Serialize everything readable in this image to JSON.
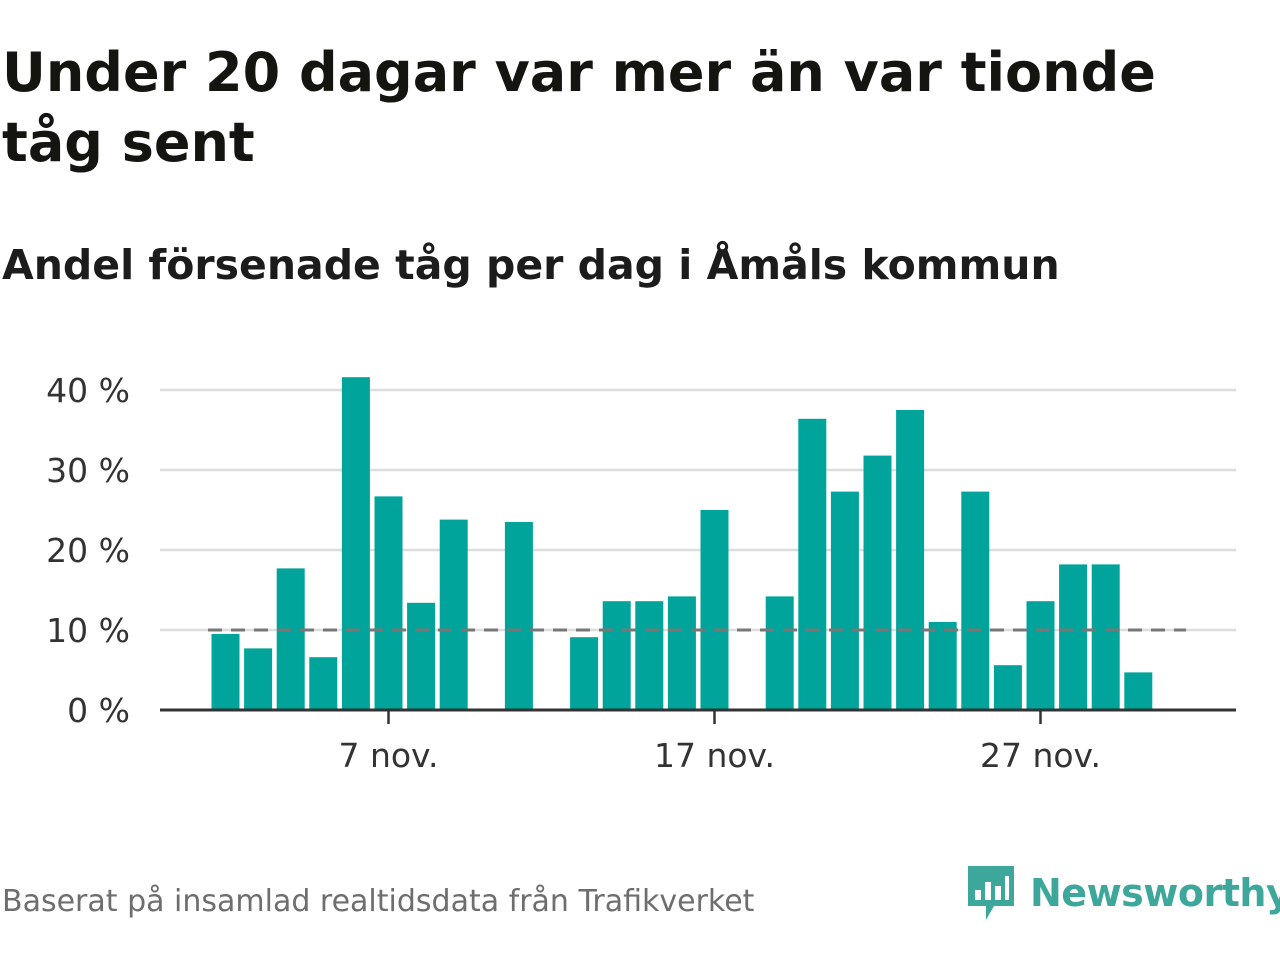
{
  "header": {
    "title": "Under 20 dagar var mer än var tionde tåg sent",
    "subtitle": "Andel försenade tåg per dag i Åmåls kommun"
  },
  "footer": {
    "source": "Baserat på insamlad realtidsdata från Trafikverket",
    "brand": "Newsworthy"
  },
  "colors": {
    "bar": "#00a49a",
    "reference_line": "#777777",
    "grid": "#dddddd",
    "axis": "#333333",
    "brand": "#3ea79b"
  },
  "icons": {
    "brand_logo": "newsworthy-logo-icon"
  },
  "chart_data": {
    "type": "bar",
    "title": "Andel försenade tåg per dag i Åmåls kommun",
    "xlabel": "",
    "ylabel": "",
    "x_tick_labels": [
      {
        "date": "2023-11-07",
        "label": "7 nov."
      },
      {
        "date": "2023-11-17",
        "label": "17 nov."
      },
      {
        "date": "2023-11-27",
        "label": "27 nov."
      }
    ],
    "y_ticks": [
      0,
      10,
      20,
      30,
      40
    ],
    "y_tick_labels": [
      "0 %",
      "10 %",
      "20 %",
      "30 %",
      "40 %"
    ],
    "ylim": [
      0,
      41.5
    ],
    "grid": true,
    "reference_line": 10,
    "categories": [
      "2023-11-02",
      "2023-11-03",
      "2023-11-04",
      "2023-11-05",
      "2023-11-06",
      "2023-11-07",
      "2023-11-08",
      "2023-11-09",
      "2023-11-10",
      "2023-11-11",
      "2023-11-12",
      "2023-11-13",
      "2023-11-14",
      "2023-11-15",
      "2023-11-16",
      "2023-11-17",
      "2023-11-18",
      "2023-11-19",
      "2023-11-20",
      "2023-11-21",
      "2023-11-22",
      "2023-11-23",
      "2023-11-24",
      "2023-11-25",
      "2023-11-26",
      "2023-11-27",
      "2023-11-28",
      "2023-11-29",
      "2023-11-30"
    ],
    "values": [
      9.5,
      7.7,
      17.7,
      6.6,
      41.6,
      26.7,
      13.4,
      23.8,
      null,
      23.5,
      null,
      9.1,
      13.6,
      13.6,
      14.2,
      25.0,
      null,
      14.2,
      36.4,
      27.3,
      31.8,
      37.5,
      11.0,
      27.3,
      5.6,
      13.6,
      18.2,
      18.2,
      4.7
    ]
  }
}
